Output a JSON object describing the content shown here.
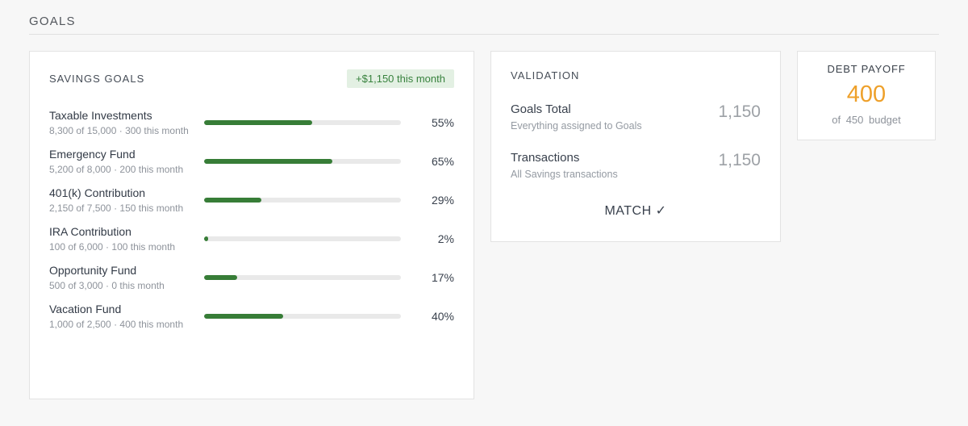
{
  "page": {
    "title": "GOALS"
  },
  "savings": {
    "title": "SAVINGS GOALS",
    "badge": "+$1,150 this month",
    "goals": [
      {
        "name": "Taxable Investments",
        "detail": "8,300 of 15,000 · 300 this month",
        "percent": 55,
        "percent_label": "55%"
      },
      {
        "name": "Emergency Fund",
        "detail": "5,200 of 8,000 · 200 this month",
        "percent": 65,
        "percent_label": "65%"
      },
      {
        "name": "401(k) Contribution",
        "detail": "2,150 of 7,500 · 150 this month",
        "percent": 29,
        "percent_label": "29%"
      },
      {
        "name": "IRA Contribution",
        "detail": "100 of 6,000 · 100 this month",
        "percent": 2,
        "percent_label": "2%"
      },
      {
        "name": "Opportunity Fund",
        "detail": "500 of 3,000 · 0 this month",
        "percent": 17,
        "percent_label": "17%"
      },
      {
        "name": "Vacation Fund",
        "detail": "1,000 of 2,500 · 400 this month",
        "percent": 40,
        "percent_label": "40%"
      }
    ]
  },
  "validation": {
    "title": "VALIDATION",
    "rows": [
      {
        "label": "Goals Total",
        "sub": "Everything assigned to Goals",
        "value": "1,150"
      },
      {
        "label": "Transactions",
        "sub": "All Savings transactions",
        "value": "1,150"
      }
    ],
    "status": "MATCH ✓"
  },
  "debt": {
    "title": "DEBT PAYOFF",
    "value": "400",
    "sub": "of 450 budget"
  },
  "colors": {
    "page_bg": "#f7f7f7",
    "card_border": "#e3e3e3",
    "progress_green": "#377d37",
    "badge_bg": "#e3f0e3",
    "badge_text": "#38823e",
    "debt_orange": "#eea02a",
    "muted_gray": "#8e939b"
  }
}
